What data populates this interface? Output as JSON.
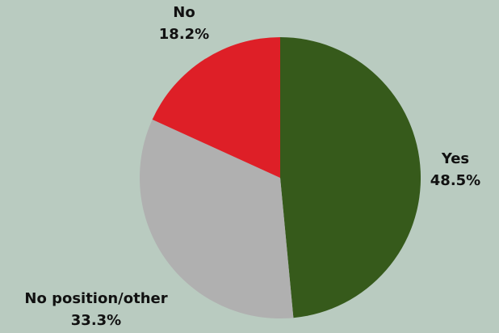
{
  "chart_data": {
    "type": "pie",
    "title": "",
    "slices": [
      {
        "label": "Yes",
        "value": 48.5,
        "value_label": "48.5%",
        "color": "#365a1b"
      },
      {
        "label": "No position/other",
        "value": 33.3,
        "value_label": "33.3%",
        "color": "#b0b0b0"
      },
      {
        "label": "No",
        "value": 18.2,
        "value_label": "18.2%",
        "color": "#de1f27"
      }
    ],
    "start_angle_deg": 0,
    "direction": "clockwise",
    "legend": "none",
    "background_color": "#b9cbc0"
  }
}
